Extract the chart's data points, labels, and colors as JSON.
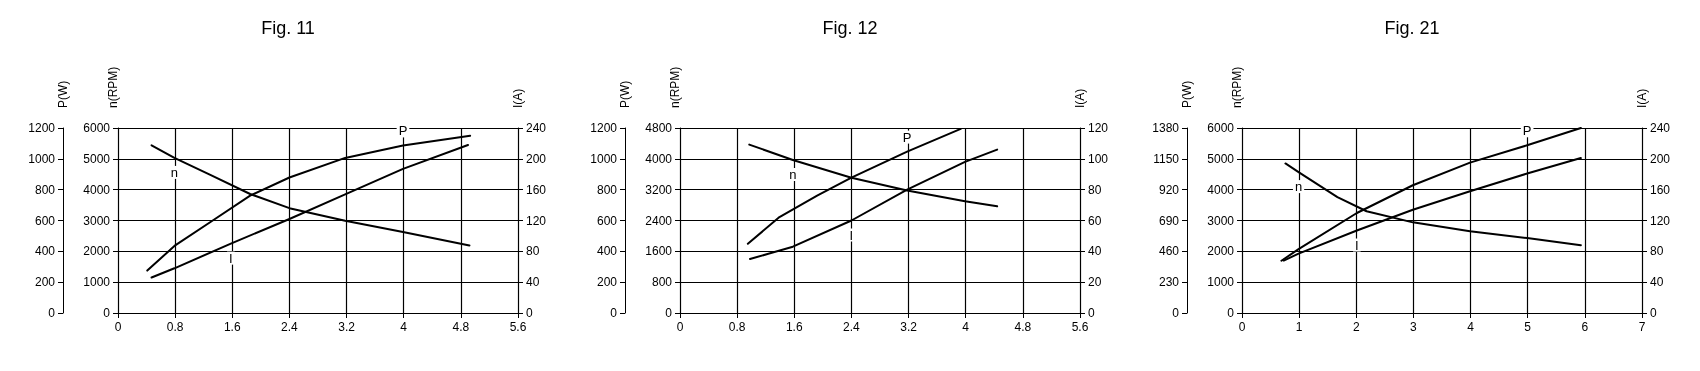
{
  "chart_data": [
    {
      "type": "line",
      "title": "Fig. 11",
      "ylabel": "P(W)",
      "y2label": "n(RPM)",
      "y3label": "I(A)",
      "xlim": [
        0,
        5.6
      ],
      "xticks": [
        0,
        0.8,
        1.6,
        2.4,
        3.2,
        4,
        4.8,
        5.6
      ],
      "ylim": [
        0,
        1200
      ],
      "yticks": [
        0,
        200,
        400,
        600,
        800,
        1000,
        1200
      ],
      "y2lim": [
        0,
        6000
      ],
      "y2ticks": [
        0,
        1000,
        2000,
        3000,
        4000,
        5000,
        6000
      ],
      "y3lim": [
        0,
        240
      ],
      "y3ticks": [
        0,
        40,
        80,
        120,
        160,
        200,
        240
      ],
      "grid": true,
      "legend": false,
      "marker": "none",
      "line_style": "solid",
      "series": [
        {
          "name": "P",
          "color": "#000000",
          "x": [
            0.41,
            0.79,
            1.3,
            1.85,
            2.4,
            3.18,
            3.99,
            4.93
          ],
          "values": [
            275,
            435,
            592,
            761,
            879,
            1006,
            1087,
            1149
          ]
        },
        {
          "name": "n",
          "color": "#000000",
          "axis": "y2",
          "x": [
            0.47,
            0.79,
            1.3,
            1.85,
            2.4,
            3.18,
            3.99,
            4.92
          ],
          "values": [
            5440,
            5030,
            4470,
            3860,
            3400,
            2990,
            2630,
            2190
          ]
        },
        {
          "name": "I",
          "color": "#000000",
          "axis": "y3",
          "x": [
            0.47,
            0.79,
            1.58,
            2.4,
            3.18,
            3.99,
            4.9
          ],
          "values": [
            46,
            58,
            90,
            122,
            154,
            187,
            218
          ]
        }
      ]
    },
    {
      "type": "line",
      "title": "Fig. 12",
      "ylabel": "P(W)",
      "y2label": "n(RPM)",
      "y3label": "I(A)",
      "xlim": [
        0,
        5.6
      ],
      "xticks": [
        0,
        0.8,
        1.6,
        2.4,
        3.2,
        4,
        4.8,
        5.6
      ],
      "ylim": [
        0,
        1200
      ],
      "yticks": [
        0,
        200,
        400,
        600,
        800,
        1000,
        1200
      ],
      "y2lim": [
        0,
        4800
      ],
      "y2ticks": [
        0,
        800,
        1600,
        2400,
        3200,
        4000,
        4800
      ],
      "y3lim": [
        0,
        120
      ],
      "y3ticks": [
        0,
        20,
        40,
        60,
        80,
        100,
        120
      ],
      "grid": true,
      "legend": false,
      "marker": "none",
      "line_style": "solid",
      "series": [
        {
          "name": "P",
          "color": "#000000",
          "x": [
            0.95,
            1.38,
            1.92,
            2.4,
            3.18,
            3.93
          ],
          "values": [
            449,
            618,
            761,
            878,
            1047,
            1194
          ]
        },
        {
          "name": "n",
          "color": "#000000",
          "axis": "y2",
          "x": [
            0.97,
            1.58,
            2.4,
            3.18,
            3.99,
            4.44
          ],
          "values": [
            4370,
            3970,
            3510,
            3180,
            2900,
            2770
          ]
        },
        {
          "name": "I",
          "color": "#000000",
          "axis": "y3",
          "x": [
            0.98,
            1.58,
            2.4,
            3.18,
            3.99,
            4.44
          ],
          "values": [
            35,
            43,
            60,
            80,
            98,
            106
          ]
        }
      ]
    },
    {
      "type": "line",
      "title": "Fig. 21",
      "ylabel": "P(W)",
      "y2label": "n(RPM)",
      "y3label": "I(A)",
      "xlim": [
        0,
        7
      ],
      "xticks": [
        0,
        1,
        2,
        3,
        4,
        5,
        6,
        7
      ],
      "ylim": [
        0,
        1380
      ],
      "yticks": [
        0,
        230,
        460,
        690,
        920,
        1150,
        1380
      ],
      "y2lim": [
        0,
        6000
      ],
      "y2ticks": [
        0,
        1000,
        2000,
        3000,
        4000,
        5000,
        6000
      ],
      "y3lim": [
        0,
        240
      ],
      "y3ticks": [
        0,
        40,
        80,
        120,
        160,
        200,
        240
      ],
      "grid": true,
      "legend": false,
      "marker": "none",
      "line_style": "solid",
      "series": [
        {
          "name": "P",
          "color": "#000000",
          "x": [
            0.69,
            0.99,
            2.01,
            2.99,
            3.99,
            4.99,
            5.93
          ],
          "values": [
            390,
            476,
            746,
            953,
            1122,
            1251,
            1380
          ]
        },
        {
          "name": "n",
          "color": "#000000",
          "axis": "y2",
          "x": [
            0.76,
            0.99,
            1.67,
            2.18,
            2.99,
            3.99,
            4.99,
            5.93
          ],
          "values": [
            4850,
            4570,
            3760,
            3300,
            2940,
            2650,
            2430,
            2200
          ]
        },
        {
          "name": "I",
          "color": "#000000",
          "axis": "y3",
          "x": [
            0.73,
            0.99,
            2.01,
            2.99,
            3.99,
            4.99,
            5.93
          ],
          "values": [
            68,
            77,
            107,
            134,
            158,
            181,
            201
          ]
        }
      ]
    }
  ]
}
